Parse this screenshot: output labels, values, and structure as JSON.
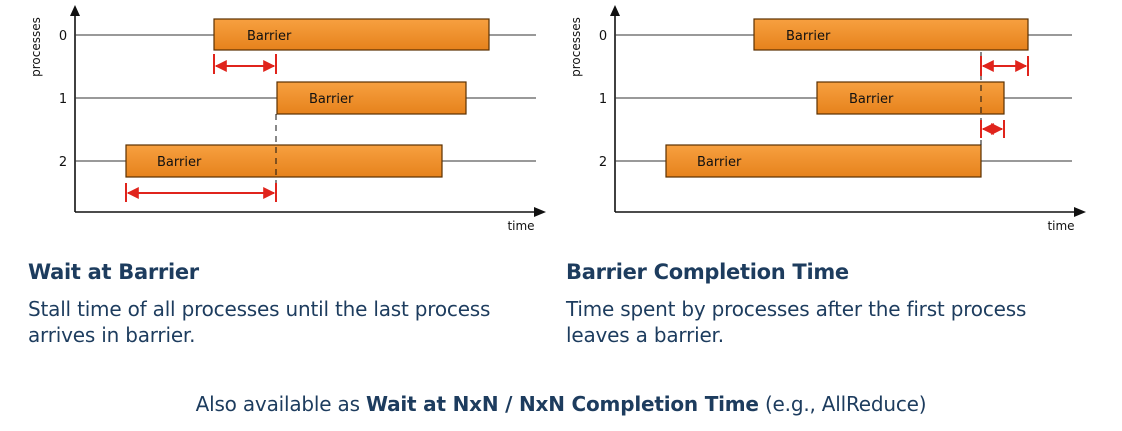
{
  "colors": {
    "bar_fill_top": "#f7a040",
    "bar_fill_bottom": "#e6821c",
    "bar_stroke": "#5a3000",
    "arrow": "#e0241c",
    "text_dark": "#1d3c5e"
  },
  "diagrams": {
    "left": {
      "ylabel": "processes",
      "xlabel": "time",
      "processes": [
        "0",
        "1",
        "2"
      ],
      "bar_label": "Barrier",
      "title": "Wait at Barrier",
      "description_lines": [
        "Stall time of all processes until the last process",
        "arrives in barrier."
      ]
    },
    "right": {
      "ylabel": "processes",
      "xlabel": "time",
      "processes": [
        "0",
        "1",
        "2"
      ],
      "bar_label": "Barrier",
      "title": "Barrier Completion Time",
      "description_lines": [
        "Time spent by processes after the first process",
        "leaves a barrier."
      ]
    }
  },
  "footnote": {
    "prefix": "Also available as ",
    "bold": "Wait at NxN / NxN Completion Time",
    "suffix": " (e.g., AllReduce)"
  }
}
